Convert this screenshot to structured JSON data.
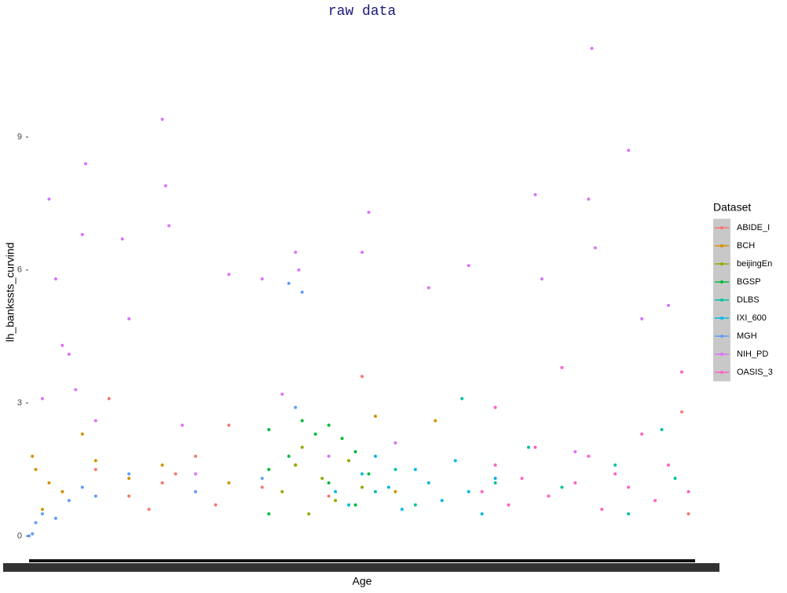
{
  "chart_data": {
    "type": "scatter",
    "title": "raw data",
    "x_label": "Age",
    "y_label": "lh_bankssts_curvind",
    "legend_title": "Dataset",
    "legend_position": "right",
    "grid": false,
    "xlim": [
      0,
      100
    ],
    "ylim": [
      -0.4,
      11.4
    ],
    "yticks": [
      0,
      3,
      6,
      9
    ],
    "series": [
      {
        "name": "ABIDE_I",
        "color": "#F8766D",
        "x": [
          5,
          10,
          15,
          20,
          25,
          28,
          30,
          22,
          18,
          12,
          35,
          40,
          45,
          50,
          70,
          98,
          99
        ],
        "values": [
          1.0,
          1.5,
          0.9,
          1.2,
          1.8,
          0.7,
          2.5,
          1.4,
          0.6,
          3.1,
          1.1,
          1.6,
          0.9,
          3.6,
          1.3,
          2.8,
          0.5
        ]
      },
      {
        "name": "BCH",
        "color": "#D39200",
        "x": [
          0.5,
          1,
          2,
          3,
          5,
          8,
          10,
          15,
          20,
          30,
          52,
          61,
          55
        ],
        "values": [
          1.8,
          1.5,
          0.6,
          1.2,
          1.0,
          2.3,
          1.7,
          1.3,
          1.6,
          1.2,
          2.7,
          2.6,
          1.0
        ]
      },
      {
        "name": "beijingEn",
        "color": "#93AA00",
        "x": [
          38,
          40,
          42,
          44,
          46,
          48,
          50,
          41
        ],
        "values": [
          1.0,
          1.6,
          0.5,
          1.3,
          0.8,
          1.7,
          1.1,
          2.0
        ]
      },
      {
        "name": "BGSP",
        "color": "#00BA38",
        "x": [
          36,
          36,
          36,
          39,
          41,
          43,
          45,
          45,
          47,
          49,
          49,
          51
        ],
        "values": [
          0.5,
          1.5,
          2.4,
          1.8,
          2.6,
          2.3,
          1.2,
          2.5,
          2.2,
          1.9,
          0.7,
          1.4
        ]
      },
      {
        "name": "DLBS",
        "color": "#00C19F",
        "x": [
          52,
          55,
          58,
          65,
          70,
          75,
          80,
          88,
          90,
          95,
          97
        ],
        "values": [
          1.0,
          1.5,
          0.7,
          3.1,
          1.2,
          2.0,
          1.1,
          1.6,
          0.5,
          2.4,
          1.3
        ]
      },
      {
        "name": "IXI_600",
        "color": "#00B9E3",
        "x": [
          46,
          48,
          50,
          52,
          54,
          56,
          58,
          60,
          62,
          64,
          66,
          68,
          70
        ],
        "values": [
          1.0,
          0.7,
          1.4,
          1.8,
          1.1,
          0.6,
          1.5,
          1.2,
          0.8,
          1.7,
          1.0,
          0.5,
          1.3
        ]
      },
      {
        "name": "MGH",
        "color": "#619CFF",
        "x": [
          0,
          0.5,
          1,
          2,
          4,
          6,
          8,
          10,
          15,
          25,
          35,
          39,
          40,
          41
        ],
        "values": [
          0.0,
          0.05,
          0.3,
          0.5,
          0.4,
          0.8,
          1.1,
          0.9,
          1.4,
          1.0,
          1.3,
          5.7,
          2.9,
          5.5
        ]
      },
      {
        "name": "NIH_PD",
        "color": "#DB72FB",
        "x": [
          2,
          3,
          4,
          5,
          6,
          7,
          8,
          8.5,
          10,
          14,
          15,
          20,
          20.5,
          21,
          23,
          30,
          35,
          38,
          40,
          40.5,
          51,
          50,
          60,
          66,
          76,
          77,
          84,
          85,
          84.5,
          90,
          92,
          96,
          25,
          45,
          55,
          82
        ],
        "values": [
          3.1,
          7.6,
          5.8,
          4.3,
          4.1,
          3.3,
          6.8,
          8.4,
          2.6,
          6.7,
          4.9,
          9.4,
          7.9,
          7.0,
          2.5,
          5.9,
          5.8,
          3.2,
          6.4,
          6.0,
          7.3,
          6.4,
          5.6,
          6.1,
          7.7,
          5.8,
          7.6,
          6.5,
          11.0,
          8.7,
          4.9,
          5.2,
          1.4,
          1.8,
          2.1,
          1.9
        ]
      },
      {
        "name": "OASIS_3",
        "color": "#FF61C3",
        "x": [
          68,
          70,
          72,
          74,
          76,
          78,
          80,
          82,
          84,
          86,
          88,
          90,
          92,
          94,
          96,
          98,
          99,
          70
        ],
        "values": [
          1.0,
          1.6,
          0.7,
          1.3,
          2.0,
          0.9,
          3.8,
          1.2,
          1.8,
          0.6,
          1.4,
          1.1,
          2.3,
          0.8,
          1.6,
          3.7,
          1.0,
          2.9
        ]
      }
    ]
  }
}
